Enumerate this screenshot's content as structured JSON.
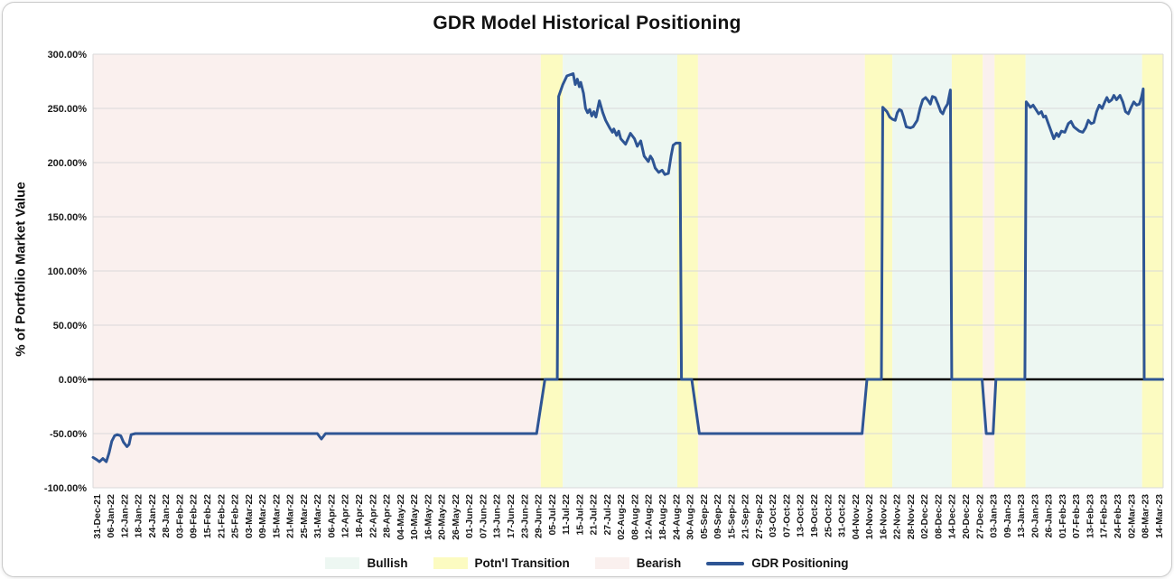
{
  "chart_data": {
    "type": "line",
    "title": "GDR Model Historical Positioning",
    "ylabel": "% of Portfolio Market Value",
    "ylim": [
      -100,
      300
    ],
    "ytick_step": 50,
    "ytick_format": "0.00%",
    "grid": "horizontal",
    "legend_position": "bottom",
    "colors": {
      "bullish": "#edf7f2",
      "transition": "#fcfbc1",
      "bearish": "#faf0ee",
      "gridline": "#d9d9d9",
      "zero_line": "#000000",
      "line": "#2e5594",
      "text": "#1a1a1a"
    },
    "x_tick_labels": [
      "31-Dec-21",
      "06-Jan-22",
      "12-Jan-22",
      "18-Jan-22",
      "24-Jan-22",
      "28-Jan-22",
      "03-Feb-22",
      "09-Feb-22",
      "15-Feb-22",
      "21-Feb-22",
      "25-Feb-22",
      "03-Mar-22",
      "09-Mar-22",
      "15-Mar-22",
      "21-Mar-22",
      "25-Mar-22",
      "31-Mar-22",
      "06-Apr-22",
      "12-Apr-22",
      "18-Apr-22",
      "22-Apr-22",
      "28-Apr-22",
      "04-May-22",
      "10-May-22",
      "16-May-22",
      "20-May-22",
      "26-May-22",
      "01-Jun-22",
      "07-Jun-22",
      "13-Jun-22",
      "17-Jun-22",
      "23-Jun-22",
      "29-Jun-22",
      "05-Jul-22",
      "11-Jul-22",
      "15-Jul-22",
      "21-Jul-22",
      "27-Jul-22",
      "02-Aug-22",
      "08-Aug-22",
      "12-Aug-22",
      "18-Aug-22",
      "24-Aug-22",
      "30-Aug-22",
      "05-Sep-22",
      "09-Sep-22",
      "15-Sep-22",
      "21-Sep-22",
      "27-Sep-22",
      "03-Oct-22",
      "07-Oct-22",
      "13-Oct-22",
      "19-Oct-22",
      "25-Oct-22",
      "31-Oct-22",
      "04-Nov-22",
      "10-Nov-22",
      "16-Nov-22",
      "22-Nov-22",
      "28-Nov-22",
      "02-Dec-22",
      "08-Dec-22",
      "14-Dec-22",
      "20-Dec-22",
      "27-Dec-22",
      "03-Jan-23",
      "09-Jan-23",
      "13-Jan-23",
      "20-Jan-23",
      "26-Jan-23",
      "01-Feb-23",
      "07-Feb-23",
      "13-Feb-23",
      "17-Feb-23",
      "24-Feb-23",
      "02-Mar-23",
      "08-Mar-23",
      "14-Mar-23"
    ],
    "regimes": [
      {
        "kind": "bearish",
        "start": -0.5,
        "end": 32.2
      },
      {
        "kind": "transition",
        "start": 32.2,
        "end": 33.8
      },
      {
        "kind": "bullish",
        "start": 33.8,
        "end": 42.1
      },
      {
        "kind": "transition",
        "start": 42.1,
        "end": 43.6
      },
      {
        "kind": "bearish",
        "start": 43.6,
        "end": 55.7
      },
      {
        "kind": "transition",
        "start": 55.7,
        "end": 57.7
      },
      {
        "kind": "bullish",
        "start": 57.7,
        "end": 62.0
      },
      {
        "kind": "transition",
        "start": 62.0,
        "end": 64.25
      },
      {
        "kind": "bearish",
        "start": 64.25,
        "end": 65.1
      },
      {
        "kind": "transition",
        "start": 65.1,
        "end": 67.35
      },
      {
        "kind": "bullish",
        "start": 67.35,
        "end": 75.8
      },
      {
        "kind": "transition",
        "start": 75.8,
        "end": 78.0
      }
    ],
    "series": [
      {
        "name": "GDR Positioning",
        "color": "#2e5594",
        "points": [
          [
            -0.26,
            -72
          ],
          [
            0,
            -74
          ],
          [
            0.2,
            -76
          ],
          [
            0.45,
            -73
          ],
          [
            0.7,
            -76
          ],
          [
            0.9,
            -68
          ],
          [
            1.1,
            -57
          ],
          [
            1.3,
            -52
          ],
          [
            1.5,
            -51
          ],
          [
            1.75,
            -52
          ],
          [
            1.95,
            -58
          ],
          [
            2.2,
            -62
          ],
          [
            2.35,
            -60
          ],
          [
            2.5,
            -51
          ],
          [
            2.8,
            -50
          ],
          [
            16,
            -50
          ],
          [
            16.3,
            -55
          ],
          [
            16.6,
            -50
          ],
          [
            31.9,
            -50
          ],
          [
            32.5,
            0
          ],
          [
            33.4,
            0
          ],
          [
            33.5,
            261
          ],
          [
            33.8,
            272
          ],
          [
            34.1,
            280
          ],
          [
            34.55,
            282
          ],
          [
            34.7,
            272
          ],
          [
            34.85,
            277
          ],
          [
            35.0,
            270
          ],
          [
            35.1,
            274
          ],
          [
            35.3,
            264
          ],
          [
            35.45,
            250
          ],
          [
            35.6,
            246
          ],
          [
            35.75,
            249
          ],
          [
            35.9,
            243
          ],
          [
            36.05,
            247
          ],
          [
            36.2,
            242
          ],
          [
            36.45,
            257
          ],
          [
            36.7,
            246
          ],
          [
            36.9,
            239
          ],
          [
            37.2,
            232
          ],
          [
            37.4,
            228
          ],
          [
            37.5,
            231
          ],
          [
            37.7,
            225
          ],
          [
            37.85,
            229
          ],
          [
            38.0,
            222
          ],
          [
            38.35,
            217
          ],
          [
            38.7,
            227
          ],
          [
            39.0,
            222
          ],
          [
            39.2,
            215
          ],
          [
            39.45,
            220
          ],
          [
            39.7,
            206
          ],
          [
            40.0,
            201
          ],
          [
            40.15,
            206
          ],
          [
            40.3,
            203
          ],
          [
            40.5,
            195
          ],
          [
            40.75,
            191
          ],
          [
            41.0,
            193
          ],
          [
            41.2,
            189
          ],
          [
            41.45,
            190
          ],
          [
            41.65,
            206
          ],
          [
            41.8,
            216
          ],
          [
            42.0,
            218
          ],
          [
            42.3,
            218
          ],
          [
            42.4,
            0
          ],
          [
            43.15,
            0
          ],
          [
            43.7,
            -50
          ],
          [
            55.5,
            -50
          ],
          [
            55.85,
            0
          ],
          [
            56.9,
            0
          ],
          [
            57.0,
            251
          ],
          [
            57.3,
            247
          ],
          [
            57.5,
            242
          ],
          [
            57.7,
            240
          ],
          [
            57.9,
            239
          ],
          [
            58.05,
            246
          ],
          [
            58.2,
            249
          ],
          [
            58.35,
            248
          ],
          [
            58.5,
            242
          ],
          [
            58.7,
            233
          ],
          [
            59.0,
            232
          ],
          [
            59.2,
            233
          ],
          [
            59.5,
            239
          ],
          [
            59.7,
            250
          ],
          [
            59.9,
            258
          ],
          [
            60.1,
            260
          ],
          [
            60.3,
            257
          ],
          [
            60.45,
            254
          ],
          [
            60.6,
            261
          ],
          [
            60.8,
            260
          ],
          [
            61.0,
            254
          ],
          [
            61.2,
            247
          ],
          [
            61.35,
            245
          ],
          [
            61.5,
            250
          ],
          [
            61.7,
            254
          ],
          [
            61.9,
            267
          ],
          [
            62.0,
            0
          ],
          [
            64.2,
            0
          ],
          [
            64.5,
            -50
          ],
          [
            65.0,
            -50
          ],
          [
            65.2,
            0
          ],
          [
            67.3,
            0
          ],
          [
            67.4,
            256
          ],
          [
            67.7,
            251
          ],
          [
            67.9,
            253
          ],
          [
            68.1,
            249
          ],
          [
            68.3,
            245
          ],
          [
            68.5,
            247
          ],
          [
            68.65,
            242
          ],
          [
            68.8,
            243
          ],
          [
            69.0,
            236
          ],
          [
            69.2,
            229
          ],
          [
            69.4,
            222
          ],
          [
            69.6,
            227
          ],
          [
            69.75,
            224
          ],
          [
            69.95,
            229
          ],
          [
            70.2,
            228
          ],
          [
            70.45,
            236
          ],
          [
            70.65,
            238
          ],
          [
            70.85,
            233
          ],
          [
            71.05,
            231
          ],
          [
            71.25,
            229
          ],
          [
            71.5,
            228
          ],
          [
            71.7,
            232
          ],
          [
            71.9,
            239
          ],
          [
            72.1,
            236
          ],
          [
            72.3,
            237
          ],
          [
            72.5,
            247
          ],
          [
            72.7,
            253
          ],
          [
            72.9,
            250
          ],
          [
            73.1,
            256
          ],
          [
            73.25,
            260
          ],
          [
            73.4,
            256
          ],
          [
            73.6,
            258
          ],
          [
            73.75,
            262
          ],
          [
            73.95,
            258
          ],
          [
            74.2,
            262
          ],
          [
            74.4,
            256
          ],
          [
            74.6,
            247
          ],
          [
            74.8,
            245
          ],
          [
            75.0,
            251
          ],
          [
            75.2,
            256
          ],
          [
            75.4,
            253
          ],
          [
            75.6,
            254
          ],
          [
            75.75,
            260
          ],
          [
            75.88,
            268
          ],
          [
            75.95,
            0
          ],
          [
            77.3,
            0
          ]
        ]
      }
    ],
    "legend": [
      {
        "label": "Bullish",
        "color": "#edf7f2",
        "type": "box"
      },
      {
        "label": "Potn'l Transition",
        "color": "#fcfbc1",
        "type": "box"
      },
      {
        "label": "Bearish",
        "color": "#faf0ee",
        "type": "box"
      },
      {
        "label": "GDR Positioning",
        "color": "#2e5594",
        "type": "line"
      }
    ]
  }
}
